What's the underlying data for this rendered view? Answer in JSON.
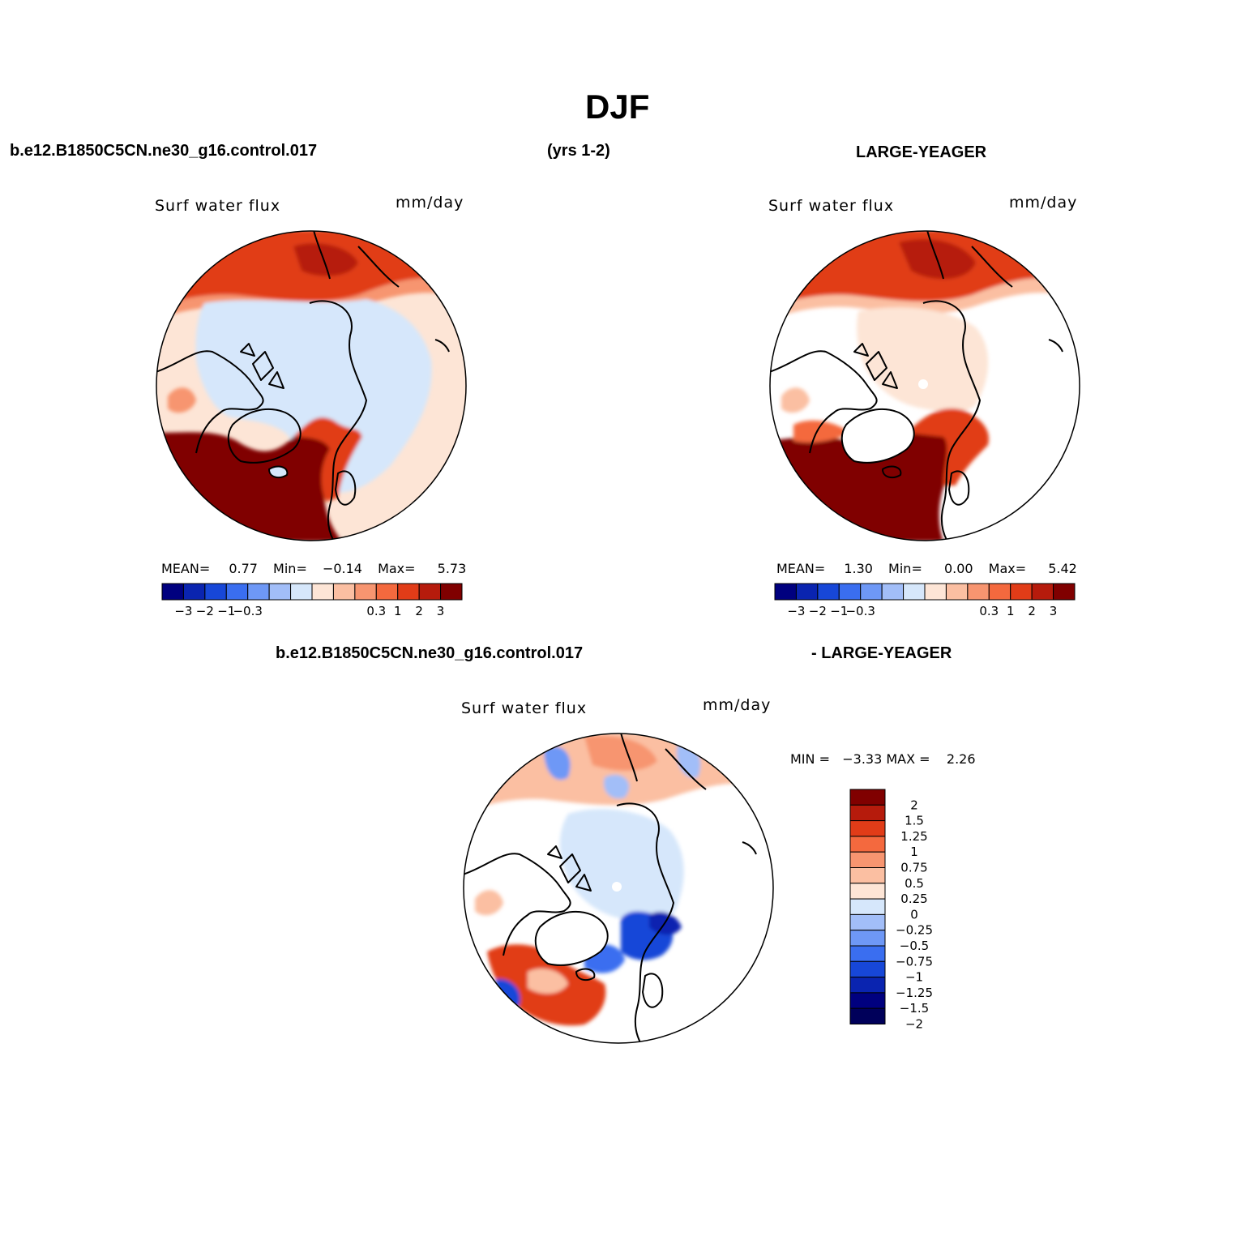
{
  "title": "DJF",
  "header": {
    "case": "b.e12.B1850C5CN.ne30_g16.control.017",
    "years": "(yrs 1-2)",
    "obs": "LARGE-YEAGER"
  },
  "panels": [
    {
      "variable": "Surf water flux",
      "units": "mm/day",
      "mean_label": "MEAN=",
      "mean": "0.77",
      "min_label": "Min=",
      "min": "−0.14",
      "max_label": "Max=",
      "max": "5.73"
    },
    {
      "variable": "Surf water flux",
      "units": "mm/day",
      "mean_label": "MEAN=",
      "mean": "1.30",
      "min_label": "Min=",
      "min": "0.00",
      "max_label": "Max=",
      "max": "5.42"
    }
  ],
  "colorbar_horizontal": {
    "colors": [
      "#00007f",
      "#0a24b0",
      "#1747d8",
      "#3a6ef0",
      "#6e98f6",
      "#a2bef8",
      "#d6e7fb",
      "#fde5d6",
      "#fbbfa2",
      "#f79570",
      "#f4693e",
      "#e13c18",
      "#b61b0c",
      "#800000"
    ],
    "tick_labels": [
      "−3",
      "−2",
      "−1",
      "−0.3",
      "0.3",
      "1",
      "2",
      "3"
    ]
  },
  "difference": {
    "header_left": "b.e12.B1850C5CN.ne30_g16.control.017",
    "header_right": "- LARGE-YEAGER",
    "variable": "Surf water flux",
    "units": "mm/day",
    "minmax_text": "MIN =   −3.33 MAX =    2.26",
    "colorbar": {
      "colors": [
        "#800000",
        "#b61b0c",
        "#e13c18",
        "#f4693e",
        "#f79570",
        "#fbbfa2",
        "#fde5d6",
        "#d6e7fb",
        "#a2bef8",
        "#6e98f6",
        "#3a6ef0",
        "#1747d8",
        "#0a24b0",
        "#00007f",
        "#00005a"
      ],
      "labels": [
        "2",
        "1.5",
        "1.25",
        "1",
        "0.75",
        "0.5",
        "0.25",
        "0",
        "−0.25",
        "−0.5",
        "−0.75",
        "−1",
        "−1.25",
        "−1.5",
        "−2"
      ]
    }
  }
}
